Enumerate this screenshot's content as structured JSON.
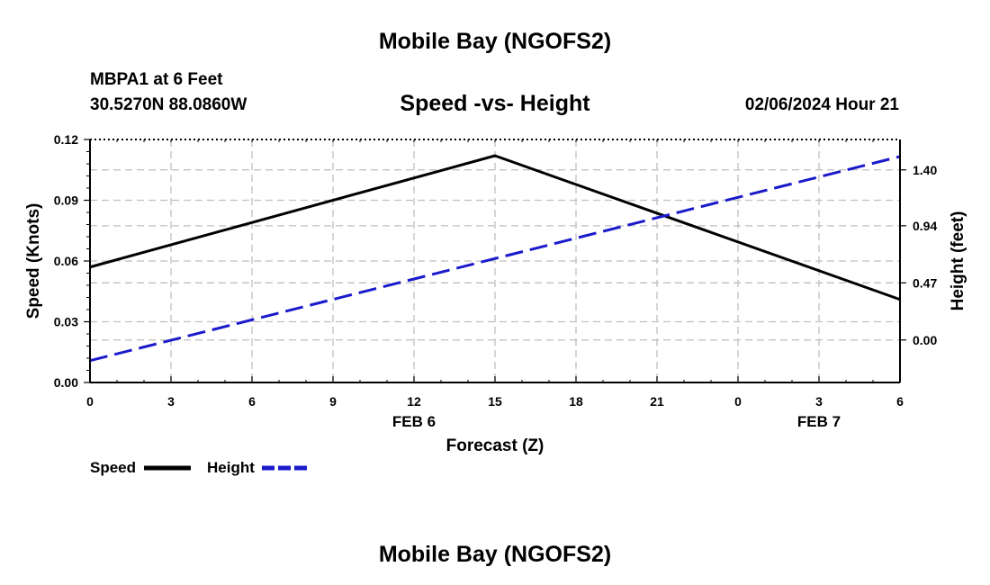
{
  "header": {
    "title": "Mobile Bay (NGOFS2)",
    "station": "MBPA1 at 6 Feet",
    "coords": "30.5270N  88.0860W",
    "chart_title": "Speed -vs- Height",
    "datetime": "02/06/2024 Hour 21"
  },
  "footer": {
    "title": "Mobile Bay (NGOFS2)"
  },
  "colors": {
    "speed": "#000000",
    "height": "#1a1acc",
    "grid": "#bfbfbf"
  },
  "chart_data": {
    "type": "line",
    "title": "Speed -vs- Height",
    "xlabel": "Forecast (Z)",
    "ylabel": "Speed (Knots)",
    "y2label": "Height (feet)",
    "x_ticks": [
      "0",
      "3",
      "6",
      "9",
      "12",
      "15",
      "18",
      "21",
      "0",
      "3",
      "6"
    ],
    "x_hours_start": 0,
    "x_hours_end": 30,
    "date_labels": [
      {
        "label": "FEB 6",
        "hour": 12
      },
      {
        "label": "FEB 7",
        "hour": 27
      }
    ],
    "ylim": [
      0,
      0.12
    ],
    "y_ticks": [
      "0.00",
      "0.03",
      "0.06",
      "0.09",
      "0.12"
    ],
    "y2lim": [
      -0.35,
      1.65
    ],
    "y2_ticks": [
      {
        "label": "0.00",
        "value": 0.0
      },
      {
        "label": "0.47",
        "value": 0.47
      },
      {
        "label": "0.94",
        "value": 0.94
      },
      {
        "label": "1.40",
        "value": 1.4
      }
    ],
    "grid": true,
    "legend_position": "bottom-left",
    "series": [
      {
        "name": "Speed",
        "axis": "left",
        "style": "solid",
        "x": [
          0,
          15,
          30
        ],
        "values": [
          0.057,
          0.112,
          0.041
        ]
      },
      {
        "name": "Height",
        "axis": "right",
        "style": "dashed",
        "x": [
          0,
          30
        ],
        "values": [
          -0.17,
          1.51
        ]
      }
    ]
  }
}
